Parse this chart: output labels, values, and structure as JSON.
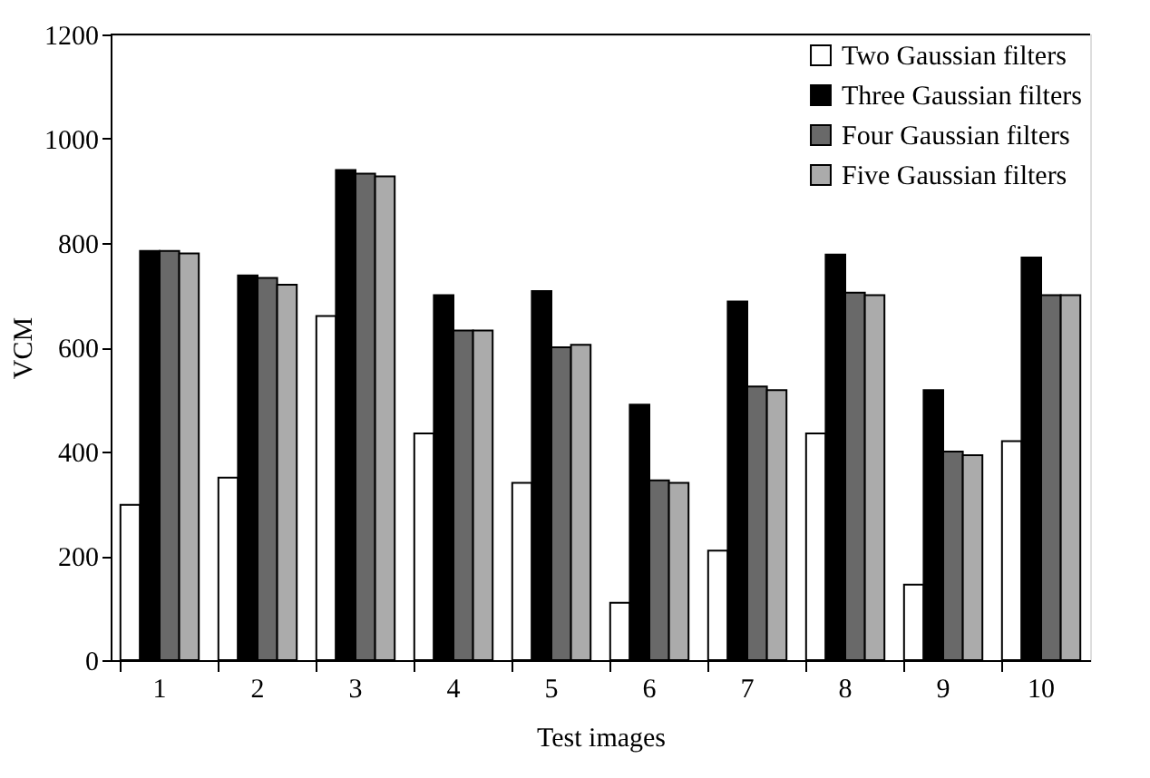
{
  "chart_data": {
    "type": "bar",
    "xlabel": "Test images",
    "ylabel": "VCM",
    "categories": [
      "1",
      "2",
      "3",
      "4",
      "5",
      "6",
      "7",
      "8",
      "9",
      "10"
    ],
    "series": [
      {
        "name": "Two Gaussian filters",
        "color": "#ffffff",
        "values": [
          298,
          350,
          660,
          435,
          340,
          110,
          210,
          435,
          145,
          420
        ]
      },
      {
        "name": "Three Gaussian filters",
        "color": "#000000",
        "values": [
          785,
          738,
          940,
          700,
          708,
          490,
          688,
          778,
          518,
          772
        ]
      },
      {
        "name": "Four Gaussian filters",
        "color": "#696969",
        "values": [
          785,
          733,
          933,
          632,
          600,
          345,
          525,
          705,
          400,
          700
        ]
      },
      {
        "name": "Five Gaussian filters",
        "color": "#ababab",
        "values": [
          780,
          720,
          928,
          632,
          605,
          340,
          518,
          700,
          393,
          700
        ]
      }
    ],
    "ylim": [
      0,
      1200
    ],
    "yticks": [
      0,
      200,
      400,
      600,
      800,
      1000,
      1200
    ],
    "grid": false,
    "legend": "top right"
  }
}
